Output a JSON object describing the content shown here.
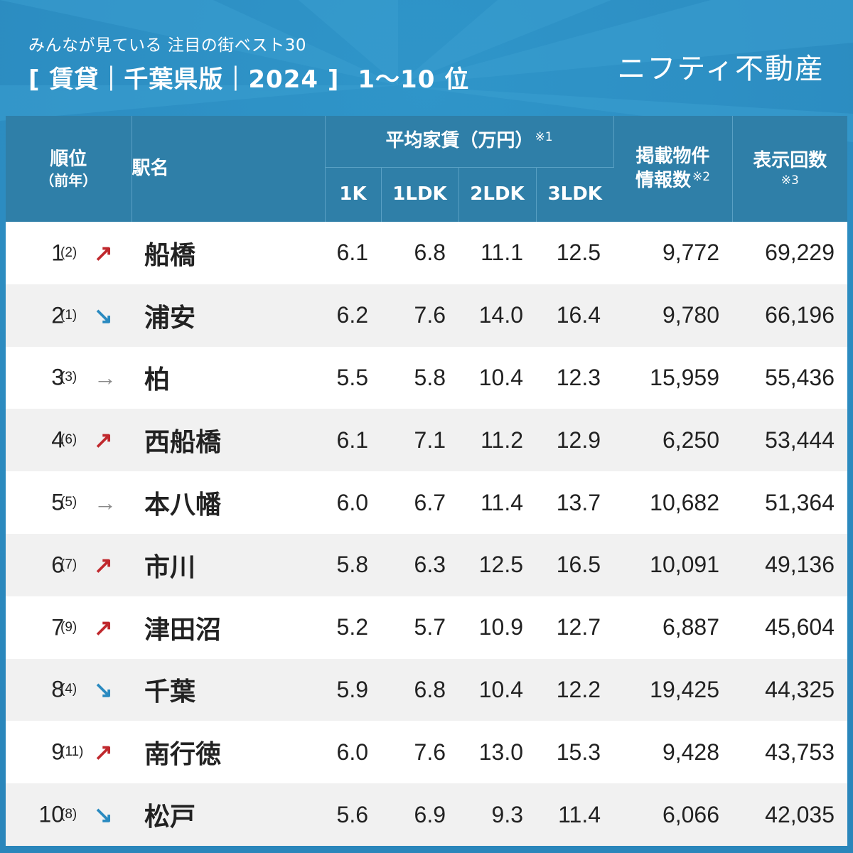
{
  "header": {
    "subtitle": "みんなが見ている 注目の街ベスト30",
    "title": "[ 賃貸｜千葉県版｜2024 ]",
    "rank_range": "1〜10 位",
    "brand": "ニフティ不動産"
  },
  "colors": {
    "background": "#2a8ac0",
    "header_row": "#2f7fa8",
    "arrow_up": "#c0282d",
    "arrow_down": "#2a8ac0",
    "arrow_flat": "#888888",
    "row_alt": "#f1f1f1"
  },
  "table": {
    "headers": {
      "rank": "順位",
      "rank_prev": "（前年）",
      "station": "駅名",
      "rent": "平均家賃（万円）",
      "rent_note": "※1",
      "sub_cols": [
        "1K",
        "1LDK",
        "2LDK",
        "3LDK"
      ],
      "listings_line1": "掲載物件",
      "listings_line2": "情報数",
      "listings_note": "※2",
      "views": "表示回数",
      "views_note": "※3"
    },
    "rows": [
      {
        "rank": "1",
        "prev": "(2)",
        "trend": "up",
        "arrow": "↗",
        "station": "船橋",
        "k1": "6.1",
        "ldk1": "6.8",
        "ldk2": "11.1",
        "ldk3": "12.5",
        "listings": "9,772",
        "views": "69,229"
      },
      {
        "rank": "2",
        "prev": "(1)",
        "trend": "down",
        "arrow": "↘",
        "station": "浦安",
        "k1": "6.2",
        "ldk1": "7.6",
        "ldk2": "14.0",
        "ldk3": "16.4",
        "listings": "9,780",
        "views": "66,196"
      },
      {
        "rank": "3",
        "prev": "(3)",
        "trend": "flat",
        "arrow": "→",
        "station": "柏",
        "k1": "5.5",
        "ldk1": "5.8",
        "ldk2": "10.4",
        "ldk3": "12.3",
        "listings": "15,959",
        "views": "55,436"
      },
      {
        "rank": "4",
        "prev": "(6)",
        "trend": "up",
        "arrow": "↗",
        "station": "西船橋",
        "k1": "6.1",
        "ldk1": "7.1",
        "ldk2": "11.2",
        "ldk3": "12.9",
        "listings": "6,250",
        "views": "53,444"
      },
      {
        "rank": "5",
        "prev": "(5)",
        "trend": "flat",
        "arrow": "→",
        "station": "本八幡",
        "k1": "6.0",
        "ldk1": "6.7",
        "ldk2": "11.4",
        "ldk3": "13.7",
        "listings": "10,682",
        "views": "51,364"
      },
      {
        "rank": "6",
        "prev": "(7)",
        "trend": "up",
        "arrow": "↗",
        "station": "市川",
        "k1": "5.8",
        "ldk1": "6.3",
        "ldk2": "12.5",
        "ldk3": "16.5",
        "listings": "10,091",
        "views": "49,136"
      },
      {
        "rank": "7",
        "prev": "(9)",
        "trend": "up",
        "arrow": "↗",
        "station": "津田沼",
        "k1": "5.2",
        "ldk1": "5.7",
        "ldk2": "10.9",
        "ldk3": "12.7",
        "listings": "6,887",
        "views": "45,604"
      },
      {
        "rank": "8",
        "prev": "(4)",
        "trend": "down",
        "arrow": "↘",
        "station": "千葉",
        "k1": "5.9",
        "ldk1": "6.8",
        "ldk2": "10.4",
        "ldk3": "12.2",
        "listings": "19,425",
        "views": "44,325"
      },
      {
        "rank": "9",
        "prev": "(11)",
        "trend": "up",
        "arrow": "↗",
        "station": "南行徳",
        "k1": "6.0",
        "ldk1": "7.6",
        "ldk2": "13.0",
        "ldk3": "15.3",
        "listings": "9,428",
        "views": "43,753"
      },
      {
        "rank": "10",
        "prev": "(8)",
        "trend": "down",
        "arrow": "↘",
        "station": "松戸",
        "k1": "5.6",
        "ldk1": "6.9",
        "ldk2": "9.3",
        "ldk3": "11.4",
        "listings": "6,066",
        "views": "42,035"
      }
    ]
  }
}
